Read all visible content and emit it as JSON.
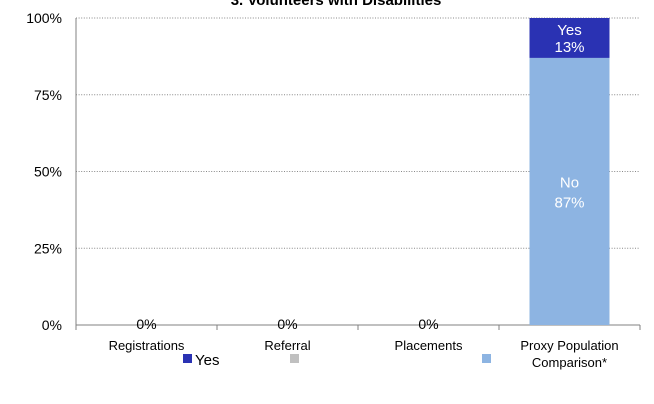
{
  "chart_data": {
    "type": "bar",
    "stacked": true,
    "title": "3. Volunteers with Disabilities",
    "categories": [
      "Registrations",
      "Referral",
      "Placements",
      "Proxy Population Comparison*"
    ],
    "series": [
      {
        "name": "Yes",
        "values": [
          0,
          0,
          0,
          13
        ],
        "color": "#2a32b3"
      },
      {
        "name": "",
        "values": [
          0,
          0,
          0,
          0
        ],
        "color": "#c0c0c0"
      },
      {
        "name": "",
        "values": [
          0,
          0,
          0,
          87
        ],
        "color": "#8db4e2"
      }
    ],
    "zero_labels": [
      "0%",
      "0%",
      "0%"
    ],
    "data_labels": {
      "yes_name": "Yes",
      "yes_value": "13%",
      "no_name": "No",
      "no_value": "87%"
    },
    "y_ticks": [
      "0%",
      "25%",
      "50%",
      "75%",
      "100%"
    ],
    "ylim": [
      0,
      100
    ],
    "xlabel": "",
    "ylabel": "",
    "grid": true,
    "legend": {
      "position": "bottom",
      "labels": [
        "Yes",
        "",
        ""
      ]
    }
  }
}
